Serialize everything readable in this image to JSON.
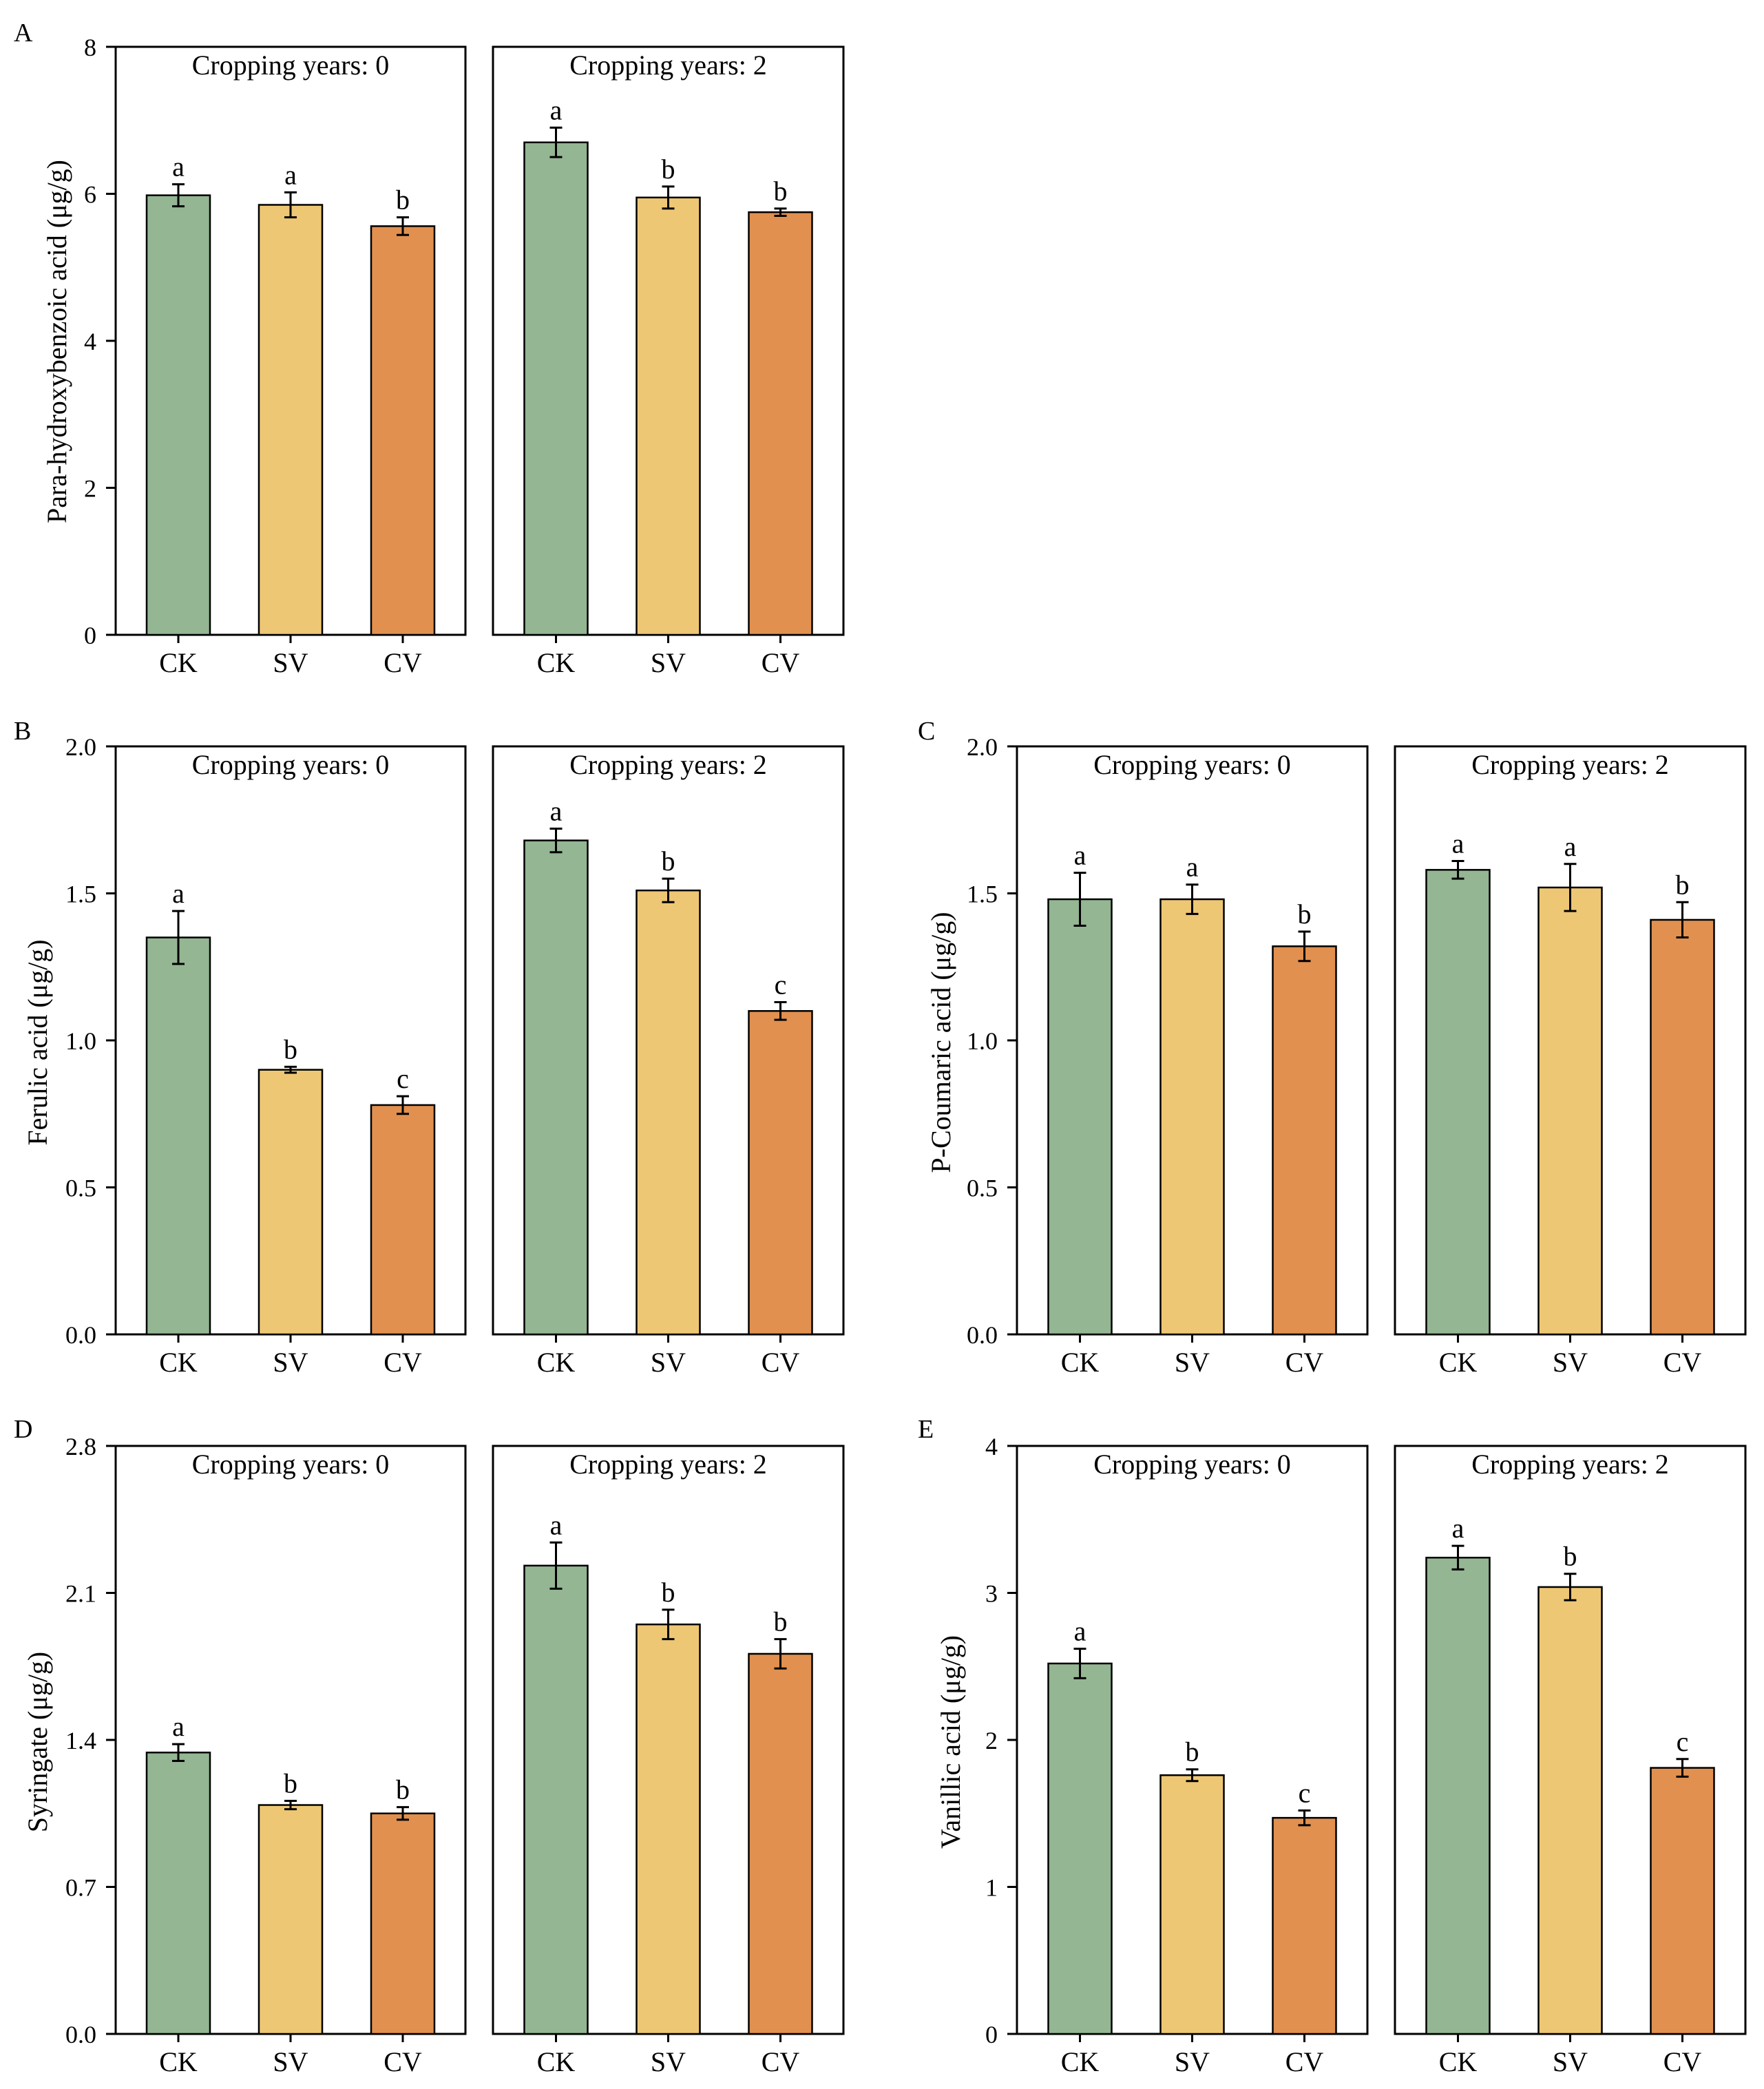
{
  "figure": {
    "colors": {
      "CK": "#94b693",
      "SV": "#eec775",
      "CV": "#e1904f",
      "axis": "#000000"
    },
    "categories": [
      "CK",
      "SV",
      "CV"
    ]
  },
  "chart_data": [
    {
      "type": "bar",
      "panel_label": "A",
      "ylabel": "Para-hydroxybenzoic acid (μg/g)",
      "ylim": [
        0,
        8
      ],
      "yticks": [
        "0",
        "2",
        "4",
        "6",
        "8"
      ],
      "subplots": [
        {
          "title": "Cropping years: 0",
          "categories": [
            "CK",
            "SV",
            "CV"
          ],
          "values": [
            5.98,
            5.85,
            5.56
          ],
          "errors": [
            0.15,
            0.17,
            0.12
          ],
          "letters": [
            "a",
            "a",
            "b"
          ]
        },
        {
          "title": "Cropping years: 2",
          "categories": [
            "CK",
            "SV",
            "CV"
          ],
          "values": [
            6.7,
            5.95,
            5.75
          ],
          "errors": [
            0.2,
            0.15,
            0.05
          ],
          "letters": [
            "a",
            "b",
            "b"
          ]
        }
      ]
    },
    {
      "type": "bar",
      "panel_label": "B",
      "ylabel": "Ferulic acid (μg/g)",
      "ylim": [
        0,
        2
      ],
      "yticks": [
        "0.0",
        "0.5",
        "1.0",
        "1.5",
        "2.0"
      ],
      "subplots": [
        {
          "title": "Cropping years: 0",
          "categories": [
            "CK",
            "SV",
            "CV"
          ],
          "values": [
            1.35,
            0.9,
            0.78
          ],
          "errors": [
            0.09,
            0.01,
            0.03
          ],
          "letters": [
            "a",
            "b",
            "c"
          ]
        },
        {
          "title": "Cropping years: 2",
          "categories": [
            "CK",
            "SV",
            "CV"
          ],
          "values": [
            1.68,
            1.51,
            1.1
          ],
          "errors": [
            0.04,
            0.04,
            0.03
          ],
          "letters": [
            "a",
            "b",
            "c"
          ]
        }
      ]
    },
    {
      "type": "bar",
      "panel_label": "C",
      "ylabel": "P-Coumaric acid (μg/g)",
      "ylim": [
        0,
        2
      ],
      "yticks": [
        "0.0",
        "0.5",
        "1.0",
        "1.5",
        "2.0"
      ],
      "subplots": [
        {
          "title": "Cropping years: 0",
          "categories": [
            "CK",
            "SV",
            "CV"
          ],
          "values": [
            1.48,
            1.48,
            1.32
          ],
          "errors": [
            0.09,
            0.05,
            0.05
          ],
          "letters": [
            "a",
            "a",
            "b"
          ]
        },
        {
          "title": "Cropping years: 2",
          "categories": [
            "CK",
            "SV",
            "CV"
          ],
          "values": [
            1.58,
            1.52,
            1.41
          ],
          "errors": [
            0.03,
            0.08,
            0.06
          ],
          "letters": [
            "a",
            "a",
            "b"
          ]
        }
      ]
    },
    {
      "type": "bar",
      "panel_label": "D",
      "ylabel": "Syringate (μg/g)",
      "ylim": [
        0,
        2.8
      ],
      "yticks": [
        "0.0",
        "0.7",
        "1.4",
        "2.1",
        "2.8"
      ],
      "subplots": [
        {
          "title": "Cropping years: 0",
          "categories": [
            "CK",
            "SV",
            "CV"
          ],
          "values": [
            1.34,
            1.09,
            1.05
          ],
          "errors": [
            0.04,
            0.02,
            0.03
          ],
          "letters": [
            "a",
            "b",
            "b"
          ]
        },
        {
          "title": "Cropping years: 2",
          "categories": [
            "CK",
            "SV",
            "CV"
          ],
          "values": [
            2.23,
            1.95,
            1.81
          ],
          "errors": [
            0.11,
            0.07,
            0.07
          ],
          "letters": [
            "a",
            "b",
            "b"
          ]
        }
      ]
    },
    {
      "type": "bar",
      "panel_label": "E",
      "ylabel": "Vanillic acid (μg/g)",
      "ylim": [
        0,
        4
      ],
      "yticks": [
        "0",
        "1",
        "2",
        "3",
        "4"
      ],
      "subplots": [
        {
          "title": "Cropping years: 0",
          "categories": [
            "CK",
            "SV",
            "CV"
          ],
          "values": [
            2.52,
            1.76,
            1.47
          ],
          "errors": [
            0.1,
            0.04,
            0.05
          ],
          "letters": [
            "a",
            "b",
            "c"
          ]
        },
        {
          "title": "Cropping years: 2",
          "categories": [
            "CK",
            "SV",
            "CV"
          ],
          "values": [
            3.24,
            3.04,
            1.81
          ],
          "errors": [
            0.08,
            0.09,
            0.06
          ],
          "letters": [
            "a",
            "b",
            "c"
          ]
        }
      ]
    }
  ]
}
